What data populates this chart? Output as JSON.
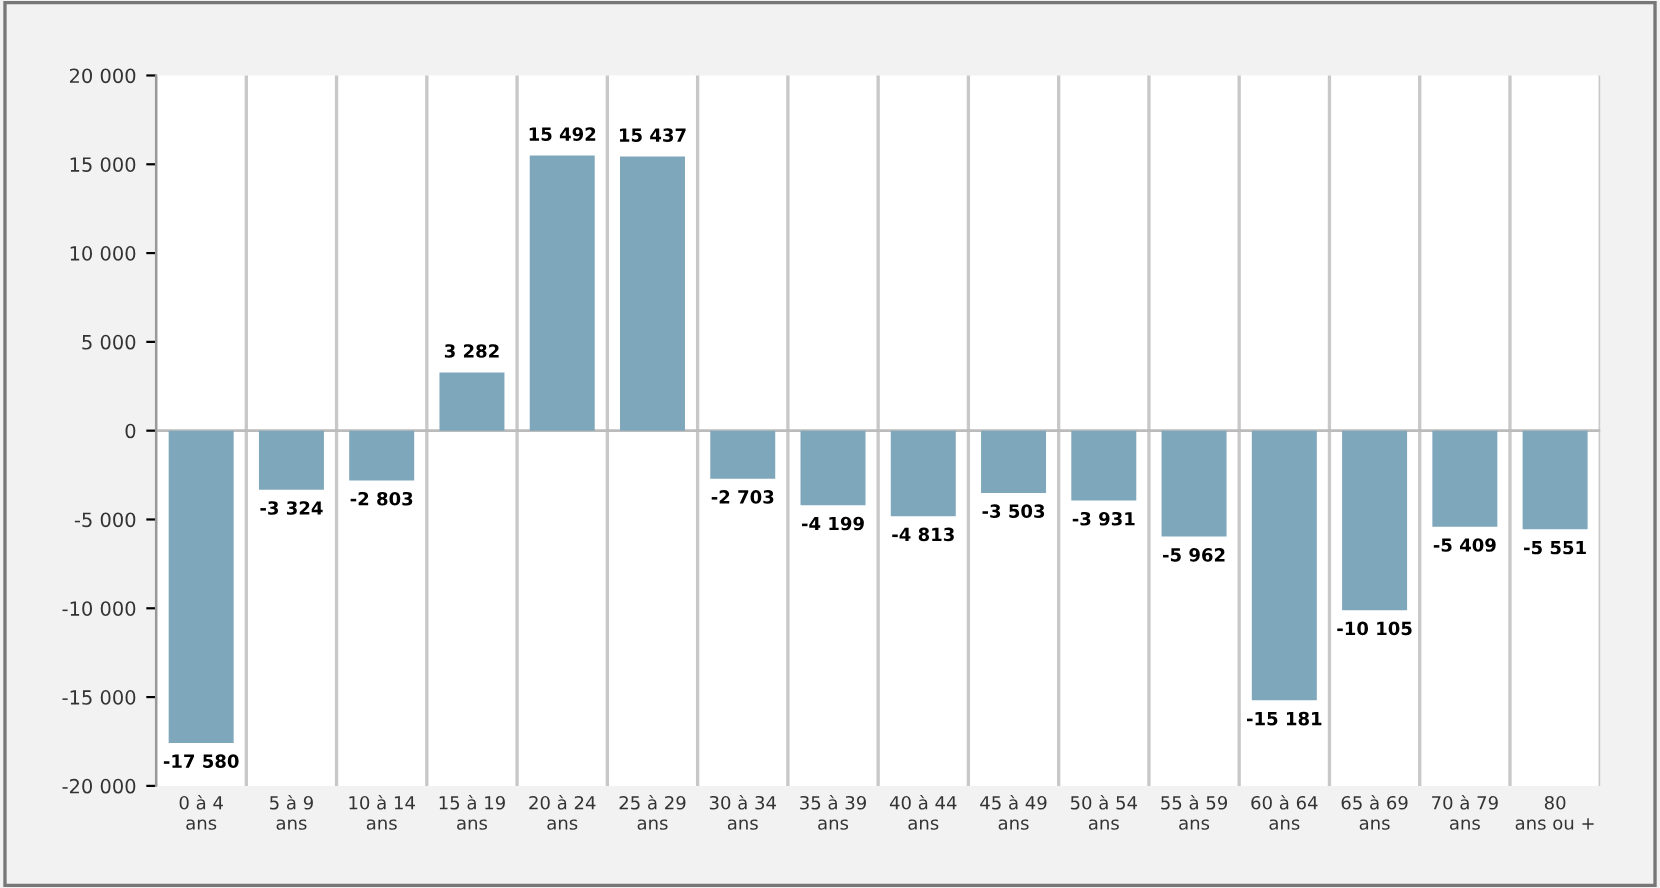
{
  "chart_data": {
    "type": "bar",
    "categories": [
      "0 à 4\nans",
      "5 à 9\nans",
      "10 à 14\nans",
      "15 à 19\nans",
      "20 à 24\nans",
      "25 à 29\nans",
      "30 à 34\nans",
      "35 à 39\nans",
      "40 à 44\nans",
      "45 à 49\nans",
      "50 à 54\nans",
      "55 à 59\nans",
      "60 à 64\nans",
      "65 à 69\nans",
      "70 à 79\nans",
      "80\nans ou +"
    ],
    "values": [
      -17580,
      -3324,
      -2803,
      3282,
      15492,
      15437,
      -2703,
      -4199,
      -4813,
      -3503,
      -3931,
      -5962,
      -15181,
      -10105,
      -5409,
      -5551
    ],
    "value_labels": [
      "-17 580",
      "-3 324",
      "-2 803",
      "3 282",
      "15 492",
      "15 437",
      "-2 703",
      "-4 199",
      "-4 813",
      "-3 503",
      "-3 931",
      "-5 962",
      "-15 181",
      "-10 105",
      "-5 409",
      "-5 551"
    ],
    "color": "#7fa7bc",
    "ylim": [
      -20000,
      20000
    ],
    "yticks": [
      {
        "value": -20000,
        "label": "-20 000"
      },
      {
        "value": -15000,
        "label": "-15 000"
      },
      {
        "value": -10000,
        "label": "-10 000"
      },
      {
        "value": -5000,
        "label": "-5 000"
      },
      0,
      {
        "value": 5000,
        "label": "5 000"
      },
      {
        "value": 10000,
        "label": "10 000"
      },
      {
        "value": 15000,
        "label": "15 000"
      },
      {
        "value": 20000,
        "label": "20 000"
      }
    ],
    "grid": "x"
  }
}
